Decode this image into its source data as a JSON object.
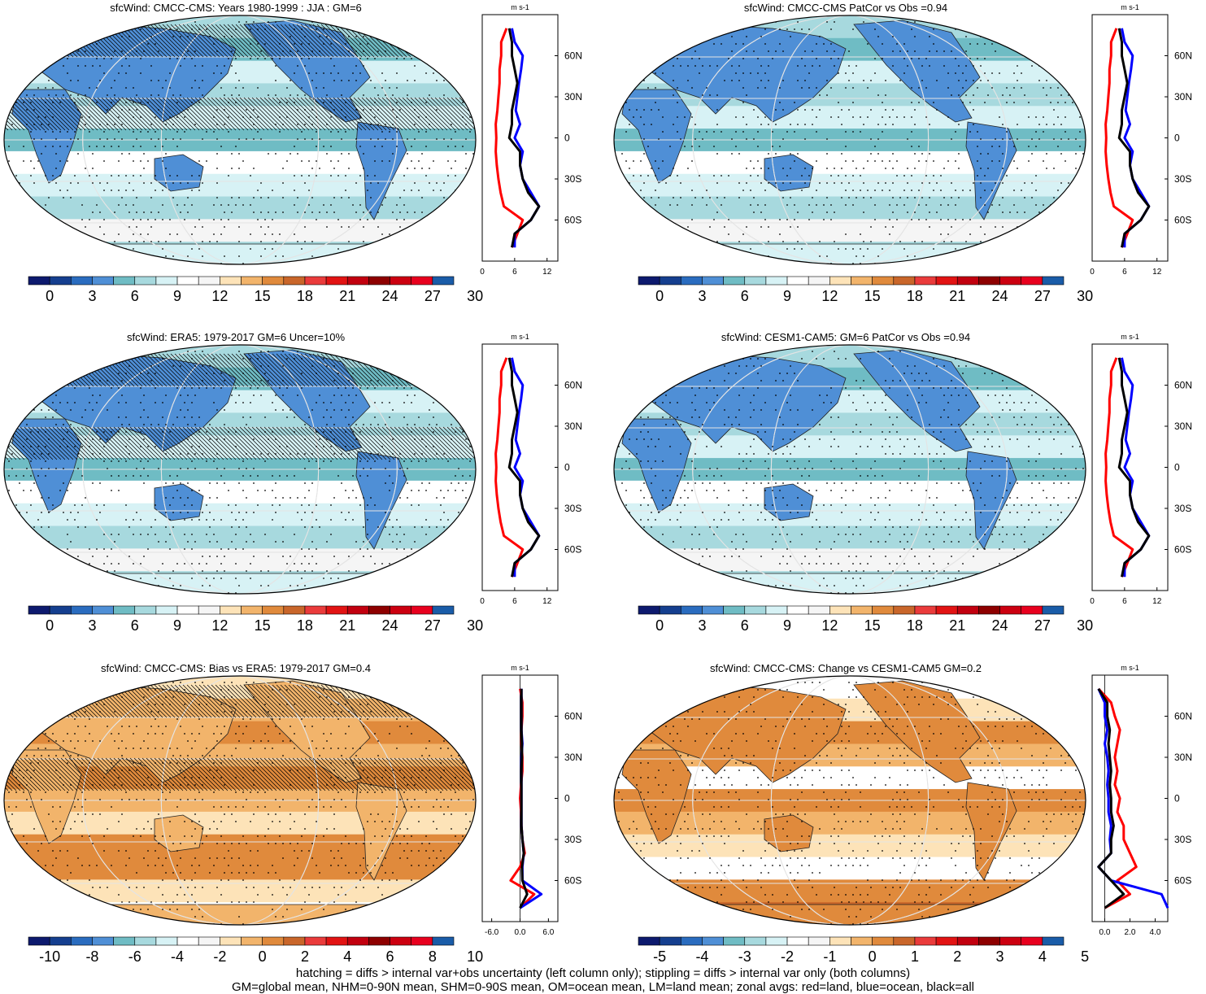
{
  "panels": [
    {
      "title": "sfcWind: CMCC-CMS: Years 1980-1999 : JJA : GM=6",
      "kind": "abs",
      "hatch": true,
      "colorbar_labels": [
        "0",
        "3",
        "6",
        "9",
        "12",
        "15",
        "18",
        "21",
        "24",
        "27",
        "30"
      ],
      "zonal_xticks": [
        "0",
        "6",
        "12"
      ],
      "zonal_xlim": [
        0,
        14
      ]
    },
    {
      "title": "sfcWind: CMCC-CMS PatCor vs Obs =0.94",
      "kind": "abs",
      "hatch": false,
      "colorbar_labels": [
        "0",
        "3",
        "6",
        "9",
        "12",
        "15",
        "18",
        "21",
        "24",
        "27",
        "30"
      ],
      "zonal_xticks": [
        "0",
        "6",
        "12"
      ],
      "zonal_xlim": [
        0,
        14
      ]
    },
    {
      "title": "sfcWind: ERA5: 1979-2017 GM=6 Uncer=10%",
      "kind": "abs",
      "hatch": true,
      "colorbar_labels": [
        "0",
        "3",
        "6",
        "9",
        "12",
        "15",
        "18",
        "21",
        "24",
        "27",
        "30"
      ],
      "zonal_xticks": [
        "0",
        "6",
        "12"
      ],
      "zonal_xlim": [
        0,
        14
      ]
    },
    {
      "title": "sfcWind: CESM1-CAM5: GM=6 PatCor vs Obs =0.94",
      "kind": "abs",
      "hatch": false,
      "colorbar_labels": [
        "0",
        "3",
        "6",
        "9",
        "12",
        "15",
        "18",
        "21",
        "24",
        "27",
        "30"
      ],
      "zonal_xticks": [
        "0",
        "6",
        "12"
      ],
      "zonal_xlim": [
        0,
        14
      ]
    },
    {
      "title": "sfcWind: CMCC-CMS: Bias vs ERA5: 1979-2017 GM=0.4",
      "kind": "diff",
      "hatch": true,
      "colorbar_labels": [
        "-10",
        "-8",
        "-6",
        "-4",
        "-2",
        "0",
        "2",
        "4",
        "6",
        "8",
        "10"
      ],
      "zonal_xticks": [
        "-6.0",
        "0.0",
        "6.0"
      ],
      "zonal_xlim": [
        -8,
        8
      ]
    },
    {
      "title": "sfcWind: CMCC-CMS: Change vs CESM1-CAM5 GM=0.2",
      "kind": "diff",
      "hatch": false,
      "colorbar_labels": [
        "-5",
        "-4",
        "-3",
        "-2",
        "-1",
        "0",
        "1",
        "2",
        "3",
        "4",
        "5"
      ],
      "zonal_xticks": [
        "0.0",
        "2.0",
        "4.0"
      ],
      "zonal_xlim": [
        -1,
        5
      ]
    }
  ],
  "zonal": {
    "units": "m s-1",
    "lat_ticks": [
      "60N",
      "30N",
      "0",
      "30S",
      "60S"
    ],
    "lats": [
      80,
      70,
      60,
      50,
      40,
      30,
      20,
      10,
      0,
      -10,
      -20,
      -30,
      -40,
      -50,
      -60,
      -70,
      -80
    ],
    "series_colors": {
      "land": "#ff0000",
      "ocean": "#0000ff",
      "all": "#000000"
    },
    "abs_series": {
      "land": [
        4.5,
        3.5,
        3.5,
        3.2,
        3.2,
        3.0,
        2.8,
        2.5,
        2.6,
        2.5,
        2.7,
        3.0,
        3.4,
        4.0,
        7.5,
        6.5,
        5.5
      ],
      "ocean": [
        5.5,
        6.0,
        7.5,
        7.2,
        6.8,
        6.5,
        6.2,
        7.0,
        6.0,
        7.5,
        7.0,
        7.5,
        9.0,
        10.5,
        9.0,
        6.0,
        6.0
      ],
      "all": [
        5.0,
        5.5,
        5.5,
        6.0,
        6.5,
        6.0,
        5.5,
        5.5,
        5.0,
        7.0,
        7.0,
        7.5,
        8.5,
        10.5,
        9.0,
        6.0,
        5.5
      ]
    },
    "bias_series": {
      "land": [
        0.0,
        0.5,
        0.5,
        0.3,
        0.3,
        0.5,
        0.5,
        0.2,
        0.0,
        0.2,
        0.3,
        0.5,
        1.0,
        0.0,
        -2.0,
        3.0,
        0.0
      ],
      "ocean": [
        0.3,
        0.3,
        0.3,
        0.3,
        0.5,
        0.3,
        0.3,
        0.3,
        0.3,
        0.3,
        0.3,
        0.5,
        0.8,
        0.5,
        0.5,
        4.5,
        0.0
      ],
      "all": [
        0.3,
        0.3,
        0.3,
        0.3,
        0.4,
        0.4,
        0.3,
        0.3,
        0.3,
        0.3,
        0.3,
        0.5,
        0.8,
        0.4,
        0.5,
        1.5,
        0.0
      ]
    },
    "change_series": {
      "land": [
        -0.5,
        0.5,
        0.8,
        1.2,
        1.0,
        0.8,
        1.0,
        0.8,
        1.2,
        1.0,
        1.5,
        1.5,
        2.0,
        2.5,
        1.0,
        2.0,
        0.0
      ],
      "ocean": [
        -0.5,
        0.0,
        0.0,
        0.2,
        0.0,
        0.2,
        0.3,
        0.2,
        0.3,
        0.3,
        0.5,
        0.4,
        0.5,
        -0.5,
        0.5,
        4.5,
        5.0
      ],
      "all": [
        -0.5,
        0.2,
        0.2,
        0.4,
        0.3,
        0.4,
        0.5,
        0.4,
        0.5,
        0.5,
        0.7,
        0.5,
        0.5,
        -0.5,
        0.5,
        1.5,
        0.0
      ]
    }
  },
  "footer": {
    "line1": "hatching = diffs > internal var+obs uncertainty (left column only); stippling = diffs > internal var only (both columns)",
    "line2": "GM=global mean, NHM=0-90N mean, SHM=0-90S mean, OM=ocean mean, LM=land mean; zonal avgs: red=land, blue=ocean, black=all"
  },
  "colors": {
    "abs_scale": [
      "#0d1a6e",
      "#153f8f",
      "#2a6cbf",
      "#4f8fd6",
      "#6fbcc4",
      "#a7d9de",
      "#d7f2f5",
      "#ffffff",
      "#f5f5f5",
      "#fde3b8",
      "#f2b46b",
      "#e08a3c",
      "#c9662a",
      "#ea3b3b",
      "#e21313",
      "#c2000f",
      "#8e0000",
      "#cc0010",
      "#e8001e",
      "#1a5ca8"
    ],
    "diff_scale": [
      "#0d1a6e",
      "#153f8f",
      "#2a6cbf",
      "#4f8fd6",
      "#6fbcc4",
      "#a7d9de",
      "#d7f2f5",
      "#ffffff",
      "#f5f5f5",
      "#fde3b8",
      "#f2b46b",
      "#e08a3c",
      "#c9662a",
      "#ea3b3b",
      "#e21313",
      "#c2000f",
      "#8e0000",
      "#cc0010",
      "#e8001e",
      "#1a5ca8"
    ]
  }
}
